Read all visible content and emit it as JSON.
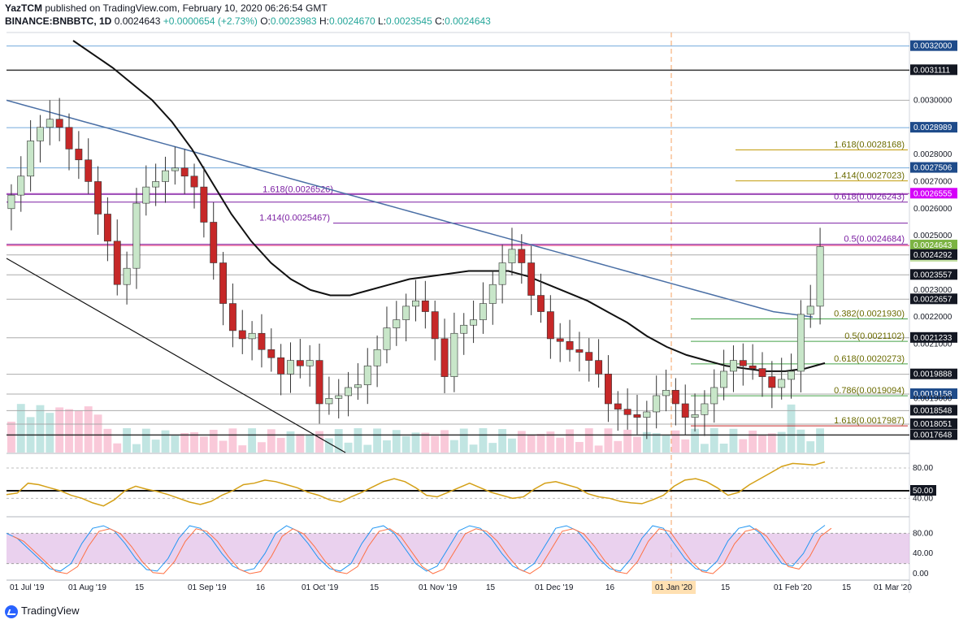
{
  "header": {
    "author": "YazTCM",
    "published": "published on TradingView.com, February 10, 2020 06:26:54 GMT",
    "symbol": "BINANCE:BNBBTC, 1D",
    "last": "0.0024643",
    "change": "+0.0000654 (+2.73%)",
    "open_label": "O:",
    "open": "0.0023983",
    "high_label": "H:",
    "high": "0.0024670",
    "low_label": "L:",
    "low": "0.0023545",
    "close_label": "C:",
    "close": "0.0024643"
  },
  "footer": {
    "logo_text": "TradingView"
  },
  "colors": {
    "up": "#26a69a",
    "down": "#ef5350",
    "candle_up": "#c8e6c9",
    "candle_down": "#c62828",
    "fib": "#43a047",
    "fib_label": "#c29b0c",
    "purple": "#9c27b0",
    "magenta": "#e91e63",
    "blue_line": "#5b9bd5",
    "ma200": "#4a6fa5",
    "ma100": "#111111",
    "rsi": "#d4a017",
    "stoch_band": "#e1bee7",
    "price_tag": "#1e4b8a"
  },
  "chart_data": {
    "type": "candlestick",
    "price_axis": {
      "range": [
        0.0017,
        0.00325
      ],
      "labels": [
        "0.0032000",
        "0.0031111",
        "0.0030000",
        "0.0028989",
        "0.0028000",
        "0.0027506",
        "0.0027000",
        "0.0026555",
        "0.0026000",
        "0.0025000",
        "0.0024643",
        "17:33:08",
        "0.0024292",
        "0.0023557",
        "0.0023000",
        "0.0022657",
        "0.0022000",
        "0.0021233",
        "0.0021000",
        "0.0019888",
        "0.0019158",
        "0.0019000",
        "0.0018548",
        "0.0018051",
        "0.0017648"
      ]
    },
    "time_axis": {
      "labels": [
        "01 Jul '19",
        "01 Aug '19",
        "15",
        "01 Sep '19",
        "16",
        "01 Oct '19",
        "15",
        "01 Nov '19",
        "15",
        "01 Dec '19",
        "16",
        "01 Jan '20",
        "15",
        "01 Feb '20",
        "15",
        "01 Mar '20"
      ]
    },
    "horizontal_levels": [
      {
        "price": 0.0032,
        "style": "blue"
      },
      {
        "price": 0.0031111,
        "style": "black"
      },
      {
        "price": 0.003,
        "style": "gray"
      },
      {
        "price": 0.0028989,
        "style": "blue"
      },
      {
        "price": 0.0027506,
        "style": "blue"
      },
      {
        "price": 0.0026555,
        "style": "purple"
      },
      {
        "price": 0.0024643,
        "style": "magenta"
      },
      {
        "price": 0.0024292,
        "style": "gray"
      },
      {
        "price": 0.0023557,
        "style": "gray"
      },
      {
        "price": 0.0022657,
        "style": "gray"
      },
      {
        "price": 0.0021233,
        "style": "gray"
      },
      {
        "price": 0.0019888,
        "style": "gray"
      },
      {
        "price": 0.0019158,
        "style": "gray"
      },
      {
        "price": 0.0018548,
        "style": "gray"
      },
      {
        "price": 0.0018051,
        "style": "gray"
      },
      {
        "price": 0.0017648,
        "style": "black"
      }
    ],
    "fib_levels": [
      {
        "label": "1.618(0.0028168)",
        "price": 0.0028168,
        "color": "yellow"
      },
      {
        "label": "1.414(0.0027023)",
        "price": 0.0027023,
        "color": "yellow"
      },
      {
        "label": "0.618(0.0026243)",
        "price": 0.0026243,
        "color": "purple"
      },
      {
        "label": "1.618(0.0026526)",
        "price": 0.0026526,
        "color": "purple"
      },
      {
        "label": "1.414(0.0025467)",
        "price": 0.0025467,
        "color": "purple"
      },
      {
        "label": "0.5(0.0024684)",
        "price": 0.0024684,
        "color": "purple"
      },
      {
        "label": "0.382(0.0021930)",
        "price": 0.002193,
        "color": "green"
      },
      {
        "label": "0.5(0.0021102)",
        "price": 0.0021102,
        "color": "green"
      },
      {
        "label": "0.618(0.0020273)",
        "price": 0.0020273,
        "color": "green"
      },
      {
        "label": "0.786(0.0019094)",
        "price": 0.0019094,
        "color": "green"
      },
      {
        "label": "1.618(0.0017987)",
        "price": 0.0017987,
        "color": "red"
      }
    ],
    "close_series": [
      0.00265,
      0.00272,
      0.00285,
      0.0029,
      0.00293,
      0.0029,
      0.00282,
      0.00278,
      0.0027,
      0.00258,
      0.00248,
      0.00232,
      0.00238,
      0.00262,
      0.00268,
      0.0027,
      0.00274,
      0.00275,
      0.00272,
      0.00268,
      0.00255,
      0.0024,
      0.00225,
      0.00215,
      0.00212,
      0.00214,
      0.00208,
      0.00205,
      0.00199,
      0.00204,
      0.00202,
      0.00204,
      0.00188,
      0.0019,
      0.00191,
      0.00194,
      0.00195,
      0.00202,
      0.00208,
      0.00216,
      0.00219,
      0.00224,
      0.00226,
      0.00222,
      0.00212,
      0.00198,
      0.00214,
      0.00217,
      0.00219,
      0.00225,
      0.00232,
      0.0024,
      0.00245,
      0.0024,
      0.00228,
      0.00222,
      0.00212,
      0.00211,
      0.00208,
      0.00207,
      0.00204,
      0.00199,
      0.00188,
      0.00186,
      0.00184,
      0.00183,
      0.00185,
      0.00191,
      0.00193,
      0.00188,
      0.00183,
      0.00184,
      0.00188,
      0.00194,
      0.002,
      0.00204,
      0.00202,
      0.00201,
      0.00198,
      0.00194,
      0.00197,
      0.002,
      0.00221,
      0.00224,
      0.00246
    ],
    "ma_slow_series": [
      0.003,
      0.00298,
      0.00296,
      0.00294,
      0.00292,
      0.0029,
      0.00288,
      0.00286,
      0.00284,
      0.00282,
      0.0028,
      0.00278,
      0.00276,
      0.00274,
      0.00272,
      0.0027,
      0.00268,
      0.00266,
      0.00264,
      0.00262,
      0.0026,
      0.00258,
      0.00256,
      0.00254,
      0.00252,
      0.0025,
      0.00248,
      0.00246,
      0.00244,
      0.00242,
      0.0024,
      0.00238,
      0.00236,
      0.00234,
      0.00232,
      0.0023,
      0.00228,
      0.00226,
      0.00224,
      0.00222,
      0.00221,
      0.0022
    ],
    "ma_fast_series": [
      0.00322,
      0.00317,
      0.00312,
      0.00306,
      0.003,
      0.00292,
      0.00282,
      0.0027,
      0.00258,
      0.00248,
      0.0024,
      0.00234,
      0.0023,
      0.00228,
      0.00228,
      0.0023,
      0.00232,
      0.00234,
      0.00235,
      0.00236,
      0.00237,
      0.00237,
      0.00237,
      0.00235,
      0.00232,
      0.00229,
      0.00226,
      0.00222,
      0.00218,
      0.00213,
      0.00209,
      0.00206,
      0.00204,
      0.00202,
      0.00201,
      0.002,
      0.002,
      0.00201,
      0.00203
    ],
    "rsi": {
      "labels": [
        "80.00",
        "50.00",
        "40.00"
      ],
      "levels": [
        80,
        50,
        40
      ],
      "values": [
        45,
        47,
        60,
        58,
        54,
        50,
        44,
        40,
        34,
        30,
        38,
        50,
        56,
        52,
        49,
        45,
        40,
        35,
        32,
        36,
        44,
        50,
        58,
        60,
        64,
        62,
        58,
        54,
        48,
        44,
        38,
        35,
        42,
        48,
        55,
        62,
        66,
        62,
        54,
        44,
        42,
        48,
        54,
        60,
        54,
        48,
        44,
        40,
        42,
        52,
        60,
        62,
        58,
        54,
        46,
        42,
        40,
        36,
        34,
        33,
        38,
        44,
        56,
        64,
        66,
        62,
        54,
        44,
        48,
        58,
        66,
        74,
        82,
        86,
        85,
        84,
        88
      ]
    },
    "stoch_rsi": {
      "labels": [
        "80.00",
        "40.00",
        "0.00"
      ],
      "band": [
        20,
        80
      ],
      "values": [
        80,
        70,
        50,
        30,
        10,
        5,
        20,
        60,
        90,
        95,
        85,
        60,
        30,
        8,
        5,
        30,
        70,
        95,
        90,
        70,
        40,
        15,
        5,
        10,
        40,
        80,
        95,
        85,
        60,
        30,
        10,
        5,
        20,
        60,
        90,
        95,
        80,
        50,
        20,
        5,
        15,
        50,
        85,
        95,
        90,
        70,
        40,
        15,
        5,
        20,
        55,
        90,
        95,
        85,
        60,
        30,
        10,
        5,
        30,
        70,
        95,
        90,
        60,
        30,
        10,
        5,
        25,
        65,
        90,
        95,
        80,
        50,
        20,
        15,
        40,
        80,
        96
      ]
    }
  }
}
